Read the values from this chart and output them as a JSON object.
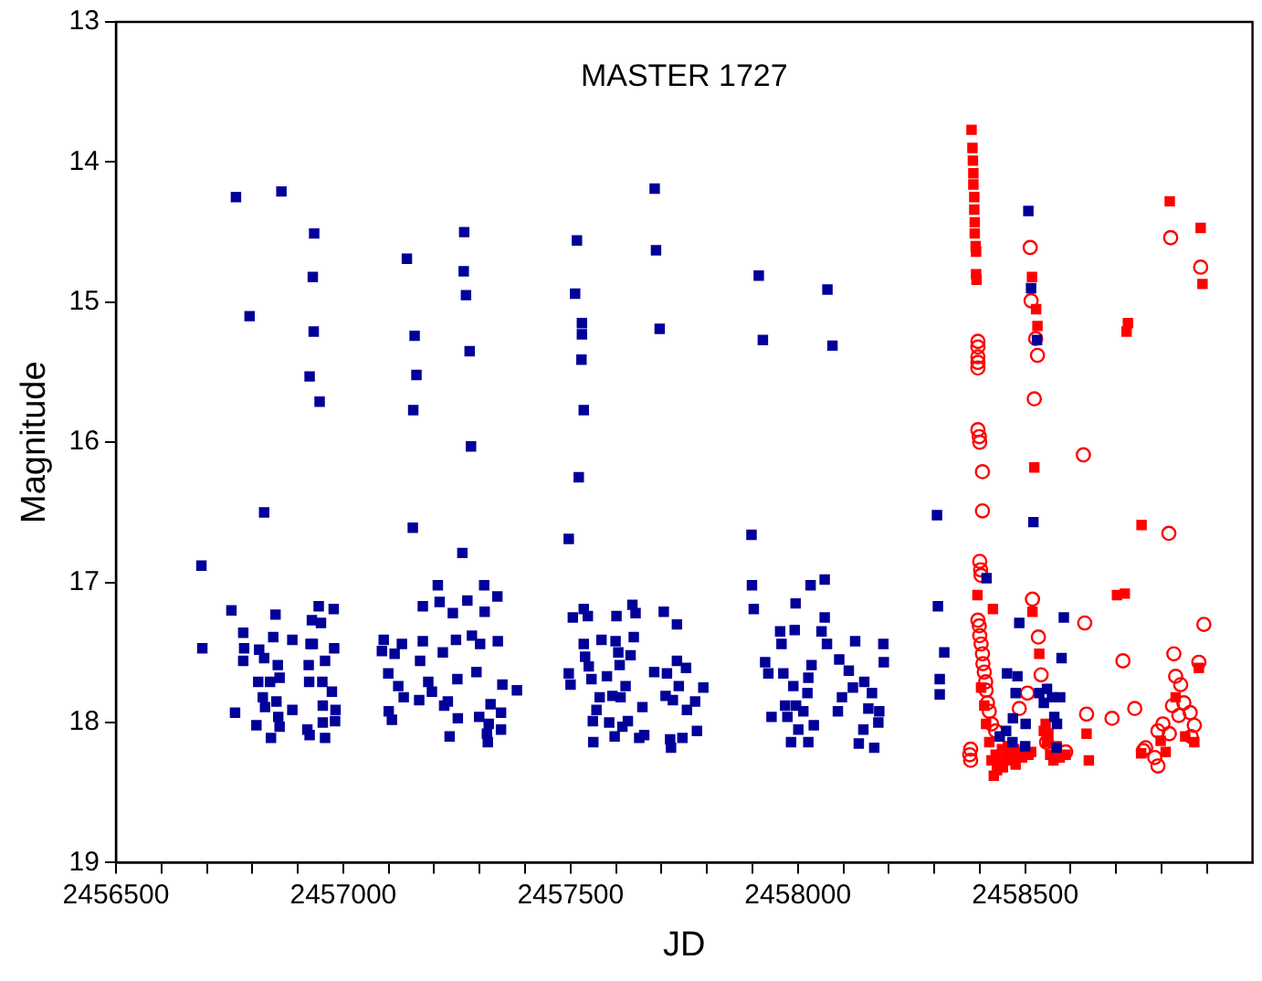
{
  "chart_data": {
    "type": "scatter",
    "title": "MASTER 1727",
    "xlabel": "JD",
    "ylabel": "Magnitude",
    "xlim": [
      2456500,
      2459000
    ],
    "ylim": [
      19,
      13
    ],
    "xticks": [
      2456500,
      {
        "value": 2456600,
        "label": null
      },
      {
        "value": 2456700,
        "label": null
      },
      {
        "value": 2456800,
        "label": null
      },
      {
        "value": 2456900,
        "label": null
      },
      2457000,
      {
        "value": 2457100,
        "label": null
      },
      {
        "value": 2457200,
        "label": null
      },
      {
        "value": 2457300,
        "label": null
      },
      {
        "value": 2457400,
        "label": null
      },
      2457500,
      {
        "value": 2457600,
        "label": null
      },
      {
        "value": 2457700,
        "label": null
      },
      {
        "value": 2457800,
        "label": null
      },
      {
        "value": 2457900,
        "label": null
      },
      2458000,
      {
        "value": 2458100,
        "label": null
      },
      {
        "value": 2458200,
        "label": null
      },
      {
        "value": 2458300,
        "label": null
      },
      {
        "value": 2458400,
        "label": null
      },
      2458500,
      {
        "value": 2458600,
        "label": null
      },
      {
        "value": 2458700,
        "label": null
      },
      {
        "value": 2458800,
        "label": null
      },
      {
        "value": 2458900,
        "label": null
      }
    ],
    "yticks": [
      13,
      14,
      15,
      16,
      17,
      18,
      19
    ],
    "grid": false,
    "legend": false,
    "series": [
      {
        "color": "#000099",
        "marker": "square",
        "x": [
          2456764,
          2456864,
          2456936,
          2456933,
          2456794,
          2456935,
          2456926,
          2456948,
          2456826,
          2456688,
          2456690,
          2456754,
          2456851,
          2456946,
          2456979,
          2456931,
          2456951,
          2456780,
          2456846,
          2456888,
          2456928,
          2456933,
          2456980,
          2456782,
          2456815,
          2456780,
          2456826,
          2456856,
          2456924,
          2456960,
          2456813,
          2456839,
          2456860,
          2456925,
          2456954,
          2456975,
          2456823,
          2456853,
          2456828,
          2456955,
          2456983,
          2456888,
          2456762,
          2456857,
          2456809,
          2456860,
          2456921,
          2456955,
          2456982,
          2456841,
          2456926,
          2456960,
          2457140,
          2457266,
          2457265,
          2457270,
          2457157,
          2457278,
          2457161,
          2457154,
          2457281,
          2457153,
          2457262,
          2457208,
          2457310,
          2457175,
          2457212,
          2457273,
          2457339,
          2457241,
          2457311,
          2457089,
          2457129,
          2457175,
          2457248,
          2457283,
          2457301,
          2457340,
          2457085,
          2457113,
          2457219,
          2457169,
          2457099,
          2457293,
          2457121,
          2457187,
          2457251,
          2457350,
          2457133,
          2457167,
          2457195,
          2457230,
          2457222,
          2457324,
          2457100,
          2457107,
          2457252,
          2457299,
          2457347,
          2457320,
          2457234,
          2457316,
          2457318,
          2457382,
          2457347,
          2457514,
          2457685,
          2457688,
          2457510,
          2457525,
          2457525,
          2457696,
          2457524,
          2457529,
          2457518,
          2457496,
          2457529,
          2457505,
          2457538,
          2457601,
          2457636,
          2457643,
          2457705,
          2457734,
          2457639,
          2457529,
          2457568,
          2457599,
          2457605,
          2457632,
          2457532,
          2457540,
          2457608,
          2457684,
          2457712,
          2457734,
          2457754,
          2457496,
          2457546,
          2457580,
          2457500,
          2457621,
          2457738,
          2457792,
          2457564,
          2457592,
          2457610,
          2457709,
          2457725,
          2457658,
          2457756,
          2457774,
          2457557,
          2457549,
          2457585,
          2457626,
          2457614,
          2457778,
          2457550,
          2457597,
          2457651,
          2457662,
          2457719,
          2457746,
          2457721,
          2457914,
          2458065,
          2457923,
          2458076,
          2457898,
          2457899,
          2457903,
          2458028,
          2458059,
          2457995,
          2457961,
          2457993,
          2458052,
          2458059,
          2457964,
          2458064,
          2458126,
          2458188,
          2457928,
          2458030,
          2458091,
          2458112,
          2458189,
          2457935,
          2457968,
          2458023,
          2457990,
          2458146,
          2458121,
          2458163,
          2458021,
          2458097,
          2457972,
          2457996,
          2458012,
          2458088,
          2458155,
          2458179,
          2457942,
          2457977,
          2458001,
          2458035,
          2458144,
          2458177,
          2457985,
          2458023,
          2458134,
          2458168,
          2458306,
          2458308,
          2458322,
          2458312,
          2458312,
          2458507,
          2458513,
          2458526,
          2458518,
          2458415,
          2458487,
          2458585,
          2458580,
          2458460,
          2458483,
          2458479,
          2458531,
          2458548,
          2458559,
          2458577,
          2458541,
          2458473,
          2458501,
          2458564,
          2458570,
          2458444,
          2458472,
          2458500,
          2458569,
          2458458
        ],
        "values": [
          14.25,
          14.21,
          14.51,
          14.82,
          15.1,
          15.21,
          15.53,
          15.71,
          16.5,
          16.88,
          17.47,
          17.2,
          17.23,
          17.17,
          17.19,
          17.27,
          17.29,
          17.36,
          17.39,
          17.41,
          17.44,
          17.44,
          17.47,
          17.47,
          17.48,
          17.56,
          17.54,
          17.59,
          17.59,
          17.56,
          17.71,
          17.71,
          17.68,
          17.71,
          17.71,
          17.78,
          17.82,
          17.85,
          17.89,
          17.88,
          17.91,
          17.91,
          17.93,
          17.96,
          18.02,
          18.03,
          18.05,
          18.0,
          17.99,
          18.11,
          18.09,
          18.11,
          14.69,
          14.5,
          14.78,
          14.95,
          15.24,
          15.35,
          15.52,
          15.77,
          16.03,
          16.61,
          16.79,
          17.02,
          17.02,
          17.17,
          17.14,
          17.13,
          17.1,
          17.22,
          17.21,
          17.41,
          17.44,
          17.42,
          17.41,
          17.38,
          17.44,
          17.42,
          17.49,
          17.51,
          17.5,
          17.56,
          17.65,
          17.64,
          17.74,
          17.71,
          17.69,
          17.73,
          17.82,
          17.84,
          17.78,
          17.85,
          17.88,
          17.87,
          17.92,
          17.98,
          17.97,
          17.96,
          17.93,
          18.01,
          18.1,
          18.08,
          18.14,
          17.77,
          18.05,
          14.56,
          14.19,
          14.63,
          14.94,
          15.15,
          15.23,
          15.19,
          15.41,
          15.77,
          16.25,
          16.69,
          17.19,
          17.25,
          17.24,
          17.24,
          17.16,
          17.22,
          17.21,
          17.3,
          17.39,
          17.44,
          17.41,
          17.42,
          17.5,
          17.52,
          17.53,
          17.6,
          17.59,
          17.64,
          17.65,
          17.56,
          17.61,
          17.65,
          17.69,
          17.67,
          17.73,
          17.74,
          17.74,
          17.75,
          17.82,
          17.81,
          17.82,
          17.81,
          17.84,
          17.89,
          17.91,
          17.85,
          17.91,
          17.99,
          18.0,
          17.99,
          18.03,
          18.06,
          18.14,
          18.1,
          18.11,
          18.09,
          18.12,
          18.11,
          18.18,
          14.81,
          14.91,
          15.27,
          15.31,
          16.66,
          17.02,
          17.19,
          17.02,
          16.98,
          17.15,
          17.35,
          17.34,
          17.35,
          17.25,
          17.44,
          17.44,
          17.42,
          17.44,
          17.57,
          17.59,
          17.55,
          17.63,
          17.57,
          17.65,
          17.65,
          17.68,
          17.74,
          17.71,
          17.75,
          17.79,
          17.79,
          17.82,
          17.88,
          17.88,
          17.92,
          17.92,
          17.9,
          17.92,
          17.96,
          17.96,
          18.05,
          18.02,
          18.05,
          18.0,
          18.14,
          18.14,
          18.15,
          18.18,
          16.52,
          17.17,
          17.5,
          17.69,
          17.8,
          14.35,
          14.9,
          15.27,
          16.57,
          16.97,
          17.29,
          17.25,
          17.54,
          17.65,
          17.67,
          17.79,
          17.79,
          17.76,
          17.82,
          17.82,
          17.86,
          17.97,
          18.01,
          17.96,
          18.01,
          18.1,
          18.14,
          18.17,
          18.18,
          18.06
        ]
      },
      {
        "color": "#ff0000",
        "marker": "square",
        "x": [
          2458382,
          2458384,
          2458385,
          2458386,
          2458386,
          2458388,
          2458388,
          2458389,
          2458389,
          2458391,
          2458392,
          2458392,
          2458393,
          2458515,
          2458524,
          2458527,
          2458520,
          2458395,
          2458429,
          2458516,
          2458531,
          2458756,
          2458702,
          2458719,
          2458726,
          2458723,
          2458818,
          2458886,
          2458890,
          2458882,
          2458831,
          2458635,
          2458640,
          2458798,
          2458809,
          2458755,
          2458852,
          2458872,
          2458403,
          2458410,
          2458414,
          2458421,
          2458426,
          2458431,
          2458438,
          2458444,
          2458451,
          2458458,
          2458465,
          2458472,
          2458479,
          2458486,
          2458493,
          2458507,
          2458513,
          2458435,
          2458449,
          2458462,
          2458476,
          2458541,
          2458548,
          2458555,
          2458562,
          2458576,
          2458589,
          2458569,
          2458545,
          2458551
        ],
        "values": [
          13.77,
          13.9,
          13.99,
          14.08,
          14.16,
          14.25,
          14.34,
          14.43,
          14.51,
          14.6,
          14.64,
          14.8,
          14.84,
          14.82,
          15.05,
          15.17,
          16.18,
          17.09,
          17.19,
          17.21,
          17.51,
          16.59,
          17.09,
          17.08,
          15.15,
          15.21,
          14.28,
          14.47,
          14.87,
          17.61,
          17.82,
          18.08,
          18.27,
          18.13,
          18.21,
          18.22,
          18.1,
          18.14,
          17.75,
          17.88,
          18.01,
          18.14,
          18.27,
          18.38,
          18.34,
          18.3,
          18.32,
          18.25,
          18.27,
          18.23,
          18.3,
          18.21,
          18.25,
          18.23,
          18.21,
          18.23,
          18.19,
          18.17,
          18.19,
          18.06,
          18.14,
          18.23,
          18.27,
          18.25,
          18.23,
          18.17,
          18.01,
          18.08
        ]
      },
      {
        "color": "#ff0000",
        "marker": "circle",
        "x": [
          2458396,
          2458396,
          2458396,
          2458396,
          2458396,
          2458396,
          2458399,
          2458400,
          2458406,
          2458406,
          2458400,
          2458402,
          2458403,
          2458396,
          2458399,
          2458400,
          2458403,
          2458406,
          2458407,
          2458410,
          2458413,
          2458414,
          2458417,
          2458421,
          2458426,
          2458435,
          2458380,
          2458378,
          2458380,
          2458511,
          2458513,
          2458523,
          2458527,
          2458520,
          2458628,
          2458516,
          2458529,
          2458631,
          2458535,
          2458487,
          2458505,
          2458547,
          2458589,
          2458635,
          2458691,
          2458741,
          2458715,
          2458816,
          2458893,
          2458827,
          2458820,
          2458886,
          2458882,
          2458831,
          2458842,
          2458824,
          2458849,
          2458863,
          2458872,
          2458803,
          2458792,
          2458765,
          2458760,
          2458785,
          2458792,
          2458838,
          2458865,
          2458817
        ],
        "values": [
          15.28,
          15.32,
          15.39,
          15.43,
          15.47,
          15.91,
          15.96,
          16.0,
          16.21,
          16.49,
          16.85,
          16.91,
          16.95,
          17.27,
          17.31,
          17.38,
          17.44,
          17.51,
          17.58,
          17.64,
          17.71,
          17.77,
          17.86,
          17.92,
          18.01,
          18.06,
          18.19,
          18.23,
          18.27,
          14.61,
          14.99,
          15.26,
          15.38,
          15.69,
          16.09,
          17.12,
          17.39,
          17.29,
          17.66,
          17.9,
          17.79,
          18.14,
          18.21,
          17.94,
          17.97,
          17.9,
          17.56,
          16.65,
          17.3,
          17.51,
          14.54,
          14.75,
          17.57,
          17.67,
          17.73,
          17.88,
          17.86,
          17.93,
          18.02,
          18.01,
          18.06,
          18.18,
          18.2,
          18.25,
          18.31,
          17.95,
          18.1,
          18.08
        ]
      }
    ]
  }
}
